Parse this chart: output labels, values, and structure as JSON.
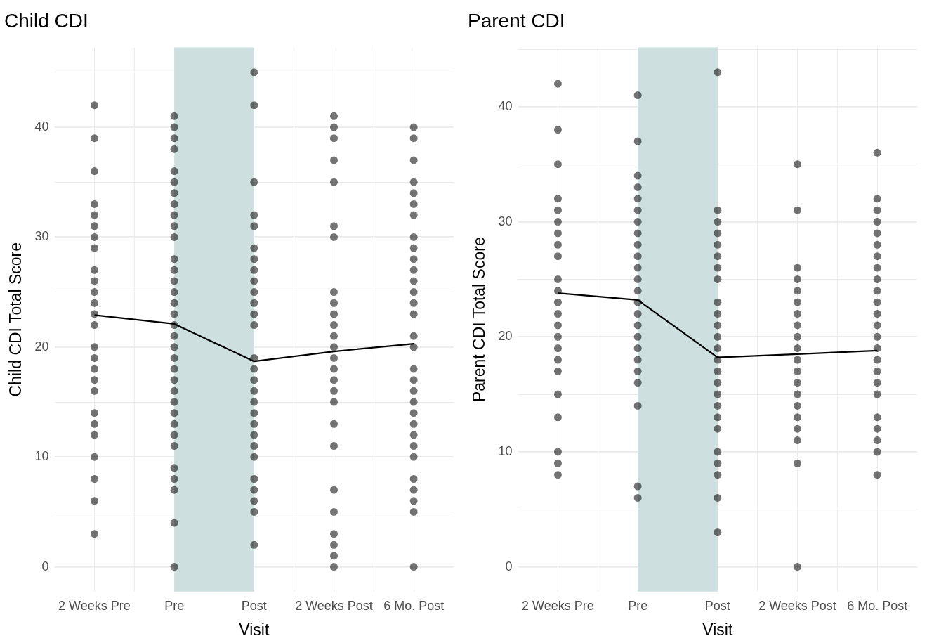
{
  "chart_data": [
    {
      "type": "scatter",
      "title": "Child CDI",
      "xlabel": "Visit",
      "ylabel": "Child CDI Total Score",
      "categories": [
        "2 Weeks Pre",
        "Pre",
        "Post",
        "2 Weeks Post",
        "6 Mo. Post"
      ],
      "ylim": [
        -2.25,
        47.25
      ],
      "yticks": [
        0,
        {
          "value": 5,
          "label": null
        },
        10,
        {
          "value": 15,
          "label": null
        },
        20,
        {
          "value": 25,
          "label": null
        },
        30,
        {
          "value": 35,
          "label": null
        },
        40,
        {
          "value": 45,
          "label": null
        }
      ],
      "grid": true,
      "legend": false,
      "bands": [
        {
          "axis": "x",
          "from": "Pre",
          "to": "Post",
          "color": "#cddfdf"
        }
      ],
      "series": [
        {
          "marker": "circle",
          "color": "#000000",
          "x": [
            "2 Weeks Pre",
            "2 Weeks Pre",
            "2 Weeks Pre",
            "2 Weeks Pre",
            "2 Weeks Pre",
            "2 Weeks Pre",
            "2 Weeks Pre",
            "2 Weeks Pre",
            "2 Weeks Pre",
            "2 Weeks Pre",
            "2 Weeks Pre",
            "2 Weeks Pre",
            "2 Weeks Pre",
            "2 Weeks Pre",
            "2 Weeks Pre",
            "2 Weeks Pre",
            "2 Weeks Pre",
            "2 Weeks Pre",
            "2 Weeks Pre",
            "2 Weeks Pre",
            "2 Weeks Pre",
            "2 Weeks Pre",
            "2 Weeks Pre",
            "2 Weeks Pre",
            "2 Weeks Pre",
            "2 Weeks Pre",
            "Pre",
            "Pre",
            "Pre",
            "Pre",
            "Pre",
            "Pre",
            "Pre",
            "Pre",
            "Pre",
            "Pre",
            "Pre",
            "Pre",
            "Pre",
            "Pre",
            "Pre",
            "Pre",
            "Pre",
            "Pre",
            "Pre",
            "Pre",
            "Pre",
            "Pre",
            "Pre",
            "Pre",
            "Pre",
            "Pre",
            "Pre",
            "Pre",
            "Pre",
            "Pre",
            "Pre",
            "Pre",
            "Pre",
            "Pre",
            "Post",
            "Post",
            "Post",
            "Post",
            "Post",
            "Post",
            "Post",
            "Post",
            "Post",
            "Post",
            "Post",
            "Post",
            "Post",
            "Post",
            "Post",
            "Post",
            "Post",
            "Post",
            "Post",
            "Post",
            "Post",
            "Post",
            "Post",
            "Post",
            "Post",
            "Post",
            "Post",
            "Post",
            "2 Weeks Post",
            "2 Weeks Post",
            "2 Weeks Post",
            "2 Weeks Post",
            "2 Weeks Post",
            "2 Weeks Post",
            "2 Weeks Post",
            "2 Weeks Post",
            "2 Weeks Post",
            "2 Weeks Post",
            "2 Weeks Post",
            "2 Weeks Post",
            "2 Weeks Post",
            "2 Weeks Post",
            "2 Weeks Post",
            "2 Weeks Post",
            "2 Weeks Post",
            "2 Weeks Post",
            "2 Weeks Post",
            "2 Weeks Post",
            "2 Weeks Post",
            "2 Weeks Post",
            "2 Weeks Post",
            "2 Weeks Post",
            "2 Weeks Post",
            "2 Weeks Post",
            "6 Mo. Post",
            "6 Mo. Post",
            "6 Mo. Post",
            "6 Mo. Post",
            "6 Mo. Post",
            "6 Mo. Post",
            "6 Mo. Post",
            "6 Mo. Post",
            "6 Mo. Post",
            "6 Mo. Post",
            "6 Mo. Post",
            "6 Mo. Post",
            "6 Mo. Post",
            "6 Mo. Post",
            "6 Mo. Post",
            "6 Mo. Post",
            "6 Mo. Post",
            "6 Mo. Post",
            "6 Mo. Post",
            "6 Mo. Post",
            "6 Mo. Post",
            "6 Mo. Post",
            "6 Mo. Post",
            "6 Mo. Post",
            "6 Mo. Post",
            "6 Mo. Post",
            "6 Mo. Post",
            "6 Mo. Post",
            "6 Mo. Post",
            "6 Mo. Post",
            "6 Mo. Post"
          ],
          "values": [
            42,
            39,
            36,
            33,
            32,
            31,
            30,
            29,
            27,
            26,
            25,
            24,
            23,
            22,
            20,
            19,
            18,
            17,
            16,
            14,
            13,
            12,
            10,
            8,
            6,
            3,
            41,
            40,
            39,
            38,
            36,
            35,
            34,
            33,
            32,
            31,
            30,
            28,
            27,
            26,
            25,
            24,
            23,
            22,
            21,
            20,
            19,
            18,
            17,
            16,
            15,
            14,
            13,
            12,
            11,
            9,
            8,
            7,
            4,
            0,
            45,
            42,
            35,
            32,
            31,
            29,
            28,
            27,
            26,
            25,
            24,
            23,
            22,
            19,
            18,
            17,
            16,
            15,
            14,
            13,
            12,
            11,
            10,
            8,
            7,
            6,
            5,
            2,
            41,
            40,
            39,
            37,
            35,
            31,
            30,
            25,
            24,
            23,
            22,
            21,
            20,
            19,
            18,
            17,
            16,
            15,
            13,
            11,
            7,
            5,
            3,
            2,
            1,
            0,
            40,
            39,
            37,
            35,
            34,
            33,
            32,
            30,
            29,
            28,
            27,
            26,
            25,
            24,
            23,
            21,
            20,
            18,
            17,
            16,
            15,
            14,
            13,
            12,
            11,
            10,
            8,
            7,
            6,
            5,
            0
          ]
        },
        {
          "type": "line",
          "marker": "none",
          "color": "#000000",
          "values": [
            22.9,
            22.1,
            18.7,
            19.6,
            20.3
          ]
        }
      ]
    },
    {
      "type": "scatter",
      "title": "Parent CDI",
      "xlabel": "Visit",
      "ylabel": "Parent CDI Total Score",
      "categories": [
        "2 Weeks Pre",
        "Pre",
        "Post",
        "2 Weeks Post",
        "6 Mo. Post"
      ],
      "ylim": [
        -2.15,
        45.15
      ],
      "yticks": [
        0,
        {
          "value": 5,
          "label": null
        },
        10,
        {
          "value": 15,
          "label": null
        },
        20,
        {
          "value": 25,
          "label": null
        },
        30,
        {
          "value": 35,
          "label": null
        },
        40,
        {
          "value": 45,
          "label": null
        }
      ],
      "grid": true,
      "legend": false,
      "bands": [
        {
          "axis": "x",
          "from": "Pre",
          "to": "Post",
          "color": "#cddfdf"
        }
      ],
      "series": [
        {
          "marker": "circle",
          "color": "#000000",
          "x": [
            "2 Weeks Pre",
            "2 Weeks Pre",
            "2 Weeks Pre",
            "2 Weeks Pre",
            "2 Weeks Pre",
            "2 Weeks Pre",
            "2 Weeks Pre",
            "2 Weeks Pre",
            "2 Weeks Pre",
            "2 Weeks Pre",
            "2 Weeks Pre",
            "2 Weeks Pre",
            "2 Weeks Pre",
            "2 Weeks Pre",
            "2 Weeks Pre",
            "2 Weeks Pre",
            "2 Weeks Pre",
            "2 Weeks Pre",
            "2 Weeks Pre",
            "2 Weeks Pre",
            "2 Weeks Pre",
            "2 Weeks Pre",
            "2 Weeks Pre",
            "Pre",
            "Pre",
            "Pre",
            "Pre",
            "Pre",
            "Pre",
            "Pre",
            "Pre",
            "Pre",
            "Pre",
            "Pre",
            "Pre",
            "Pre",
            "Pre",
            "Pre",
            "Pre",
            "Pre",
            "Pre",
            "Pre",
            "Pre",
            "Pre",
            "Pre",
            "Pre",
            "Pre",
            "Post",
            "Post",
            "Post",
            "Post",
            "Post",
            "Post",
            "Post",
            "Post",
            "Post",
            "Post",
            "Post",
            "Post",
            "Post",
            "Post",
            "Post",
            "Post",
            "Post",
            "Post",
            "Post",
            "Post",
            "Post",
            "Post",
            "Post",
            "Post",
            "Post",
            "2 Weeks Post",
            "2 Weeks Post",
            "2 Weeks Post",
            "2 Weeks Post",
            "2 Weeks Post",
            "2 Weeks Post",
            "2 Weeks Post",
            "2 Weeks Post",
            "2 Weeks Post",
            "2 Weeks Post",
            "2 Weeks Post",
            "2 Weeks Post",
            "2 Weeks Post",
            "2 Weeks Post",
            "2 Weeks Post",
            "2 Weeks Post",
            "2 Weeks Post",
            "2 Weeks Post",
            "2 Weeks Post",
            "2 Weeks Post",
            "6 Mo. Post",
            "6 Mo. Post",
            "6 Mo. Post",
            "6 Mo. Post",
            "6 Mo. Post",
            "6 Mo. Post",
            "6 Mo. Post",
            "6 Mo. Post",
            "6 Mo. Post",
            "6 Mo. Post",
            "6 Mo. Post",
            "6 Mo. Post",
            "6 Mo. Post",
            "6 Mo. Post",
            "6 Mo. Post",
            "6 Mo. Post",
            "6 Mo. Post",
            "6 Mo. Post",
            "6 Mo. Post",
            "6 Mo. Post",
            "6 Mo. Post",
            "6 Mo. Post",
            "6 Mo. Post",
            "6 Mo. Post"
          ],
          "values": [
            42,
            38,
            35,
            32,
            31,
            30,
            29,
            28,
            27,
            25,
            24,
            23,
            22,
            21,
            20,
            19,
            18,
            17,
            15,
            13,
            10,
            9,
            8,
            41,
            37,
            34,
            33,
            32,
            31,
            30,
            29,
            28,
            27,
            26,
            25,
            24,
            23,
            22,
            21,
            20,
            19,
            18,
            17,
            16,
            14,
            7,
            6,
            43,
            31,
            30,
            29,
            28,
            27,
            26,
            25,
            23,
            22,
            21,
            20,
            19,
            18,
            17,
            16,
            15,
            14,
            13,
            12,
            10,
            9,
            8,
            6,
            3,
            35,
            31,
            26,
            25,
            24,
            23,
            22,
            21,
            20,
            19,
            18,
            17,
            16,
            15,
            14,
            13,
            12,
            11,
            9,
            0,
            36,
            32,
            31,
            30,
            29,
            28,
            27,
            26,
            25,
            24,
            23,
            22,
            21,
            20,
            19,
            18,
            17,
            16,
            15,
            13,
            12,
            11,
            10,
            8
          ]
        },
        {
          "type": "line",
          "marker": "none",
          "color": "#000000",
          "values": [
            23.8,
            23.2,
            18.2,
            18.5,
            18.8
          ]
        }
      ]
    }
  ]
}
